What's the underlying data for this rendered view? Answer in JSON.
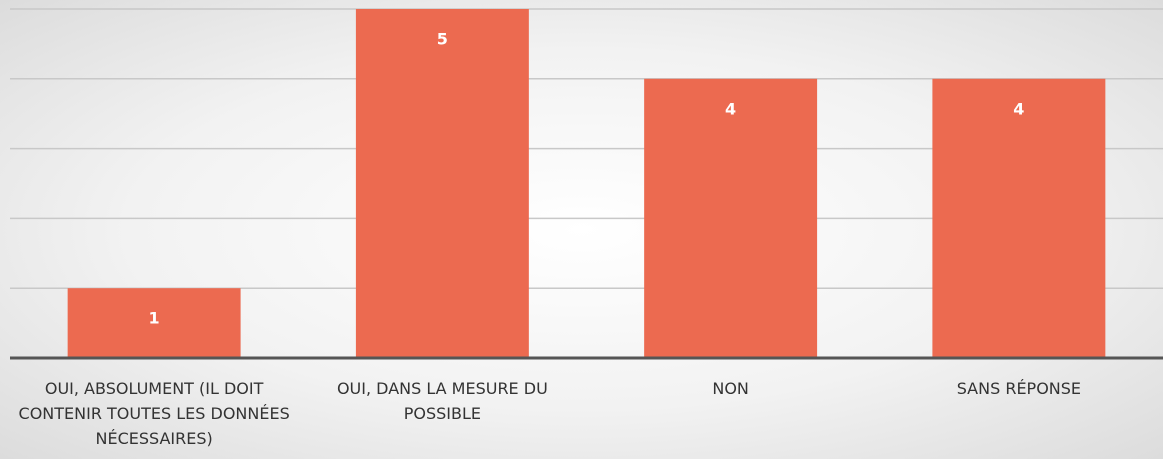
{
  "chart_data": {
    "type": "bar",
    "categories": [
      "OUI, ABSOLUMENT (IL DOIT CONTENIR TOUTES LES DONNÉES NÉCESSAIRES)",
      "OUI, DANS LA MESURE DU POSSIBLE",
      "NON",
      "SANS RÉPONSE"
    ],
    "values": [
      1,
      5,
      4,
      4
    ],
    "color": "#ec6a50",
    "ylim": [
      0,
      5
    ],
    "yticks": [
      0,
      1,
      2,
      3,
      4,
      5
    ],
    "grid": true
  }
}
